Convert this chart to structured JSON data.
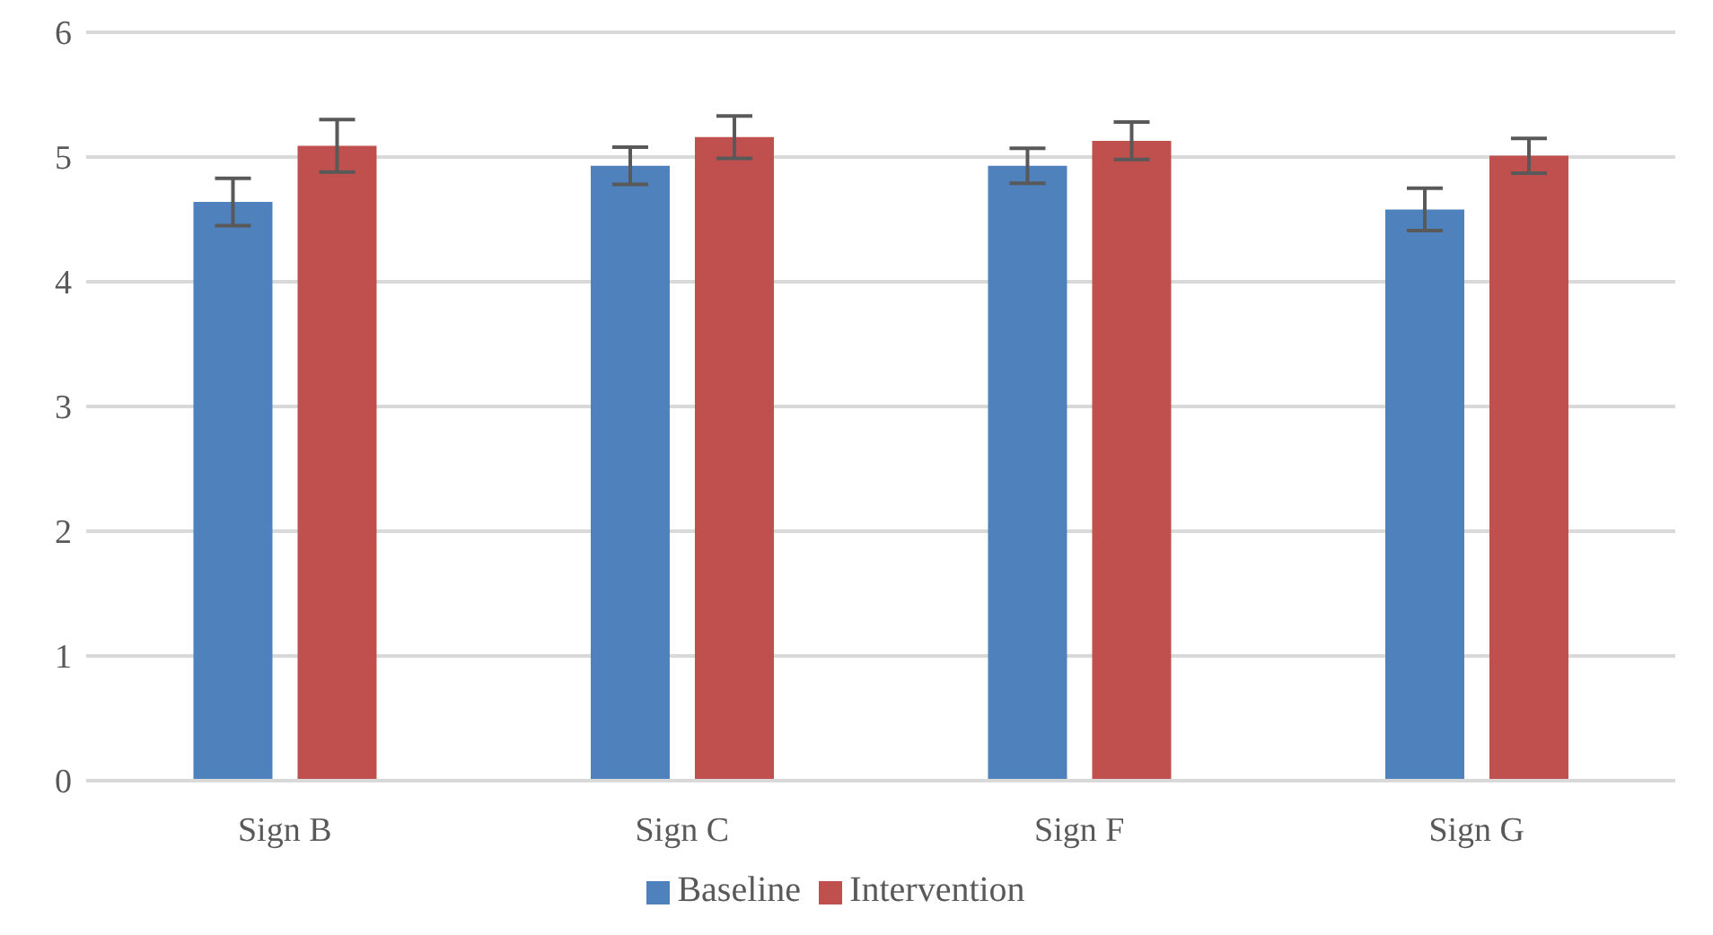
{
  "chart_data": {
    "type": "bar",
    "categories": [
      "Sign B",
      "Sign C",
      "Sign F",
      "Sign G"
    ],
    "series": [
      {
        "name": "Baseline",
        "color": "#4f81bd",
        "values": [
          4.64,
          4.93,
          4.93,
          4.58
        ],
        "errors": [
          0.19,
          0.15,
          0.14,
          0.17
        ]
      },
      {
        "name": "Intervention",
        "color": "#c0504d",
        "values": [
          5.09,
          5.16,
          5.13,
          5.01
        ],
        "errors": [
          0.21,
          0.17,
          0.15,
          0.14
        ]
      }
    ],
    "ylim": [
      0,
      6
    ],
    "yticks": [
      0,
      1,
      2,
      3,
      4,
      5,
      6
    ],
    "grid": "y",
    "legend": "bottom"
  }
}
